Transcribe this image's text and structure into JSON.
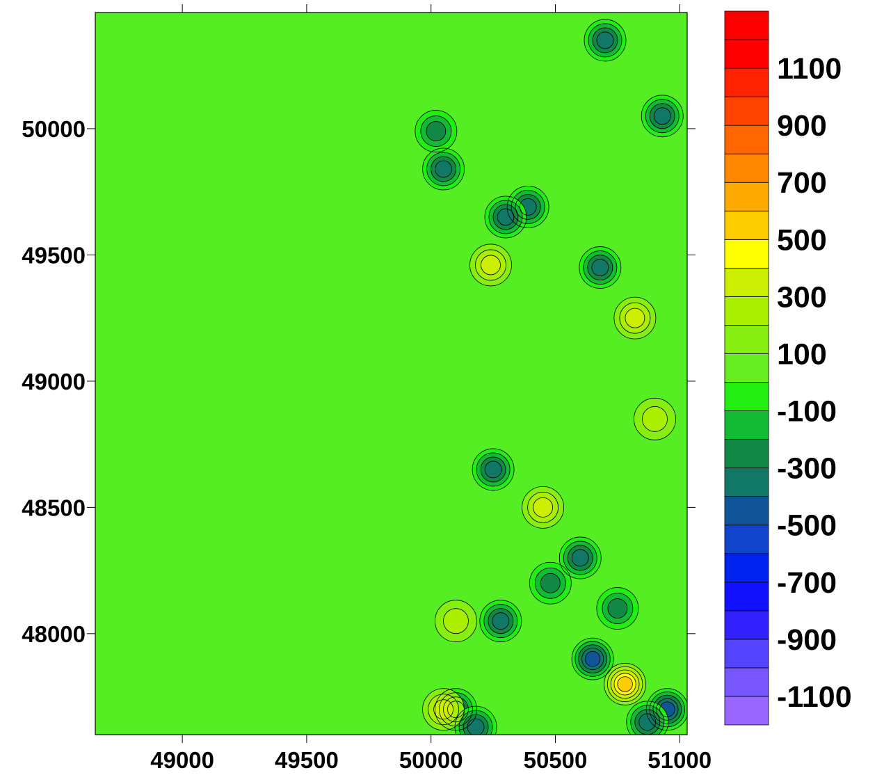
{
  "chart_data": {
    "type": "heatmap",
    "subtype": "filled-contour-map",
    "title": "",
    "xlabel": "",
    "ylabel": "",
    "xlim": [
      48650,
      51030
    ],
    "ylim": [
      47600,
      50460
    ],
    "x_ticks": [
      49000,
      49500,
      50000,
      50500,
      51000
    ],
    "x_tick_labels": [
      "49000",
      "49500",
      "50000",
      "50500",
      "51000"
    ],
    "y_ticks": [
      48000,
      48500,
      49000,
      49500,
      50000
    ],
    "y_tick_labels": [
      "48000",
      "48500",
      "49000",
      "49500",
      "50000"
    ],
    "grid": false,
    "contour_lines": true,
    "colorbar": {
      "placement": "right",
      "levels": [
        -1200,
        -1100,
        -1000,
        -900,
        -800,
        -700,
        -600,
        -500,
        -400,
        -300,
        -200,
        -100,
        0,
        100,
        200,
        300,
        400,
        500,
        600,
        700,
        800,
        900,
        1000,
        1100,
        1200,
        1300
      ],
      "colors": [
        "#9966ff",
        "#7755ff",
        "#5544ff",
        "#3322ff",
        "#1111ff",
        "#0022ee",
        "#1144cc",
        "#115599",
        "#117766",
        "#118844",
        "#11bb33",
        "#22ee11",
        "#66ee22",
        "#88ee11",
        "#aaee00",
        "#ccee00",
        "#ffff00",
        "#ffcc00",
        "#ffaa00",
        "#ff8800",
        "#ff6600",
        "#ff4400",
        "#ff2200",
        "#ff0000",
        "#ff0000"
      ],
      "labels": [
        "1100",
        "900",
        "700",
        "500",
        "300",
        "100",
        "-100",
        "-300",
        "-500",
        "-700",
        "-900",
        "-1100"
      ],
      "label_values": [
        1100,
        900,
        700,
        500,
        300,
        100,
        -100,
        -300,
        -500,
        -700,
        -900,
        -1100
      ]
    },
    "features": [
      {
        "x": 50100,
        "y": 47700,
        "value": -350
      },
      {
        "x": 50180,
        "y": 47630,
        "value": -400
      },
      {
        "x": 50280,
        "y": 48050,
        "value": -350
      },
      {
        "x": 50480,
        "y": 48200,
        "value": -300
      },
      {
        "x": 50600,
        "y": 48300,
        "value": -400
      },
      {
        "x": 50650,
        "y": 47900,
        "value": -450
      },
      {
        "x": 50780,
        "y": 47800,
        "value": 450
      },
      {
        "x": 50950,
        "y": 47700,
        "value": -450
      },
      {
        "x": 50870,
        "y": 47650,
        "value": -400
      },
      {
        "x": 50820,
        "y": 49250,
        "value": 250
      },
      {
        "x": 50680,
        "y": 49450,
        "value": -350
      },
      {
        "x": 50390,
        "y": 49690,
        "value": -400
      },
      {
        "x": 50300,
        "y": 49650,
        "value": -350
      },
      {
        "x": 50240,
        "y": 49460,
        "value": 250
      },
      {
        "x": 50050,
        "y": 49840,
        "value": -400
      },
      {
        "x": 50020,
        "y": 49990,
        "value": -300
      },
      {
        "x": 50700,
        "y": 50350,
        "value": -400
      },
      {
        "x": 50930,
        "y": 50050,
        "value": -400
      },
      {
        "x": 50250,
        "y": 48650,
        "value": -350
      },
      {
        "x": 50450,
        "y": 48500,
        "value": 250
      },
      {
        "x": 50100,
        "y": 48050,
        "value": 200
      },
      {
        "x": 50050,
        "y": 47700,
        "value": 250
      },
      {
        "x": 50900,
        "y": 48850,
        "value": 200
      },
      {
        "x": 50750,
        "y": 48100,
        "value": -300
      }
    ]
  }
}
